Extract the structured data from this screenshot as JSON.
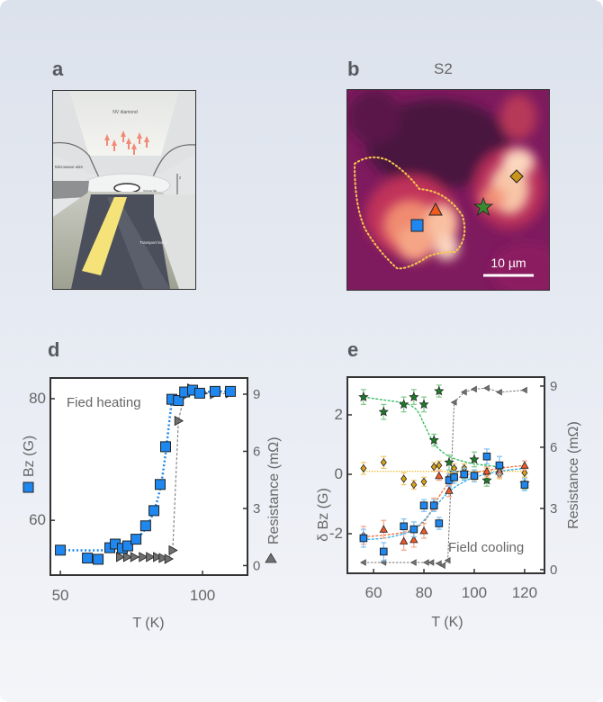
{
  "panels": {
    "a": {
      "letter": "a",
      "labels": {
        "nv_diamond": "NV diamond",
        "microwave_wire": "Microwave wire",
        "sample": "Sample",
        "transport_leads": "Transport leads",
        "z_axis": "z"
      }
    },
    "b": {
      "letter": "b",
      "title": "S2",
      "scale_bar": "10 µm",
      "markers": [
        "square",
        "triangle",
        "star",
        "diamond"
      ]
    },
    "d": {
      "letter": "d"
    },
    "e": {
      "letter": "e"
    }
  },
  "colors": {
    "blue": "#1e88f0",
    "orange": "#f2703a",
    "green": "#1f8a2e",
    "gold": "#d4a017",
    "gray": "#707070",
    "axis": "#333333",
    "label": "#666666"
  },
  "chart_data": [
    {
      "id": "d",
      "type": "scatter",
      "annotation": "Fied heating",
      "xlabel": "T (K)",
      "ylabel_left": "Bz (G)",
      "ylabel_right": "Resistance (mΩ)",
      "xlim": [
        46.5,
        115.8
      ],
      "ylim_left": [
        51.0,
        83.4
      ],
      "ylim_right": [
        -0.5,
        9.85
      ],
      "xticks": [
        50,
        100
      ],
      "yticks_left": [
        60,
        80
      ],
      "yticks_right": [
        0,
        3,
        6,
        9
      ],
      "series": [
        {
          "name": "Bz",
          "axis": "left",
          "marker": "square",
          "line": "dotted",
          "x": [
            50,
            59.5,
            63.3,
            67.4,
            69.3,
            71.8,
            73.7,
            76.6,
            80,
            82.9,
            85.1,
            87,
            89.2,
            91.5,
            93.7,
            96.5,
            99,
            104.4,
            109.8
          ],
          "y": [
            55.1,
            53.8,
            53.6,
            55.5,
            56.1,
            55.4,
            55.8,
            56.9,
            59.1,
            61.6,
            65.9,
            72.1,
            79.9,
            79.7,
            81.1,
            81.4,
            80.9,
            81.2,
            81.2
          ]
        },
        {
          "name": "Resistance",
          "axis": "right",
          "marker": "triangle-right",
          "line": "dashed",
          "x": [
            71,
            73.5,
            76,
            79,
            81.5,
            84,
            86,
            88,
            89.5,
            91.5,
            93.5,
            96,
            98,
            100,
            104,
            109.5
          ],
          "y": [
            0.45,
            0.45,
            0.45,
            0.45,
            0.45,
            0.45,
            0.4,
            0.35,
            0.8,
            7.6,
            8.9,
            9.3,
            9.2,
            9.05,
            9.0,
            9.05
          ]
        }
      ],
      "fit": {
        "x": [
          50,
          66,
          72,
          78,
          82,
          85,
          87,
          88.5,
          89.5,
          91,
          95,
          100,
          110
        ],
        "y": [
          55.1,
          55.1,
          55.6,
          57.5,
          60.5,
          65,
          71,
          77,
          80,
          80.3,
          80.9,
          81.1,
          81.2
        ]
      }
    },
    {
      "id": "e",
      "type": "scatter",
      "annotation": "Field cooling",
      "xlabel": "T (K)",
      "ylabel_left": "δ Bz (G)",
      "ylabel_right": "Resistance (mΩ)",
      "xlim": [
        49.6,
        127.9
      ],
      "ylim_left": [
        -3.33,
        3.27
      ],
      "ylim_right": [
        -0.18,
        9.44
      ],
      "xticks": [
        60,
        80,
        100,
        120
      ],
      "yticks_left": [
        -2,
        0,
        2
      ],
      "yticks_right": [
        0,
        3,
        6,
        9
      ],
      "series": [
        {
          "name": "star",
          "axis": "left",
          "marker": "star",
          "color": "green",
          "x": [
            56,
            64,
            72,
            76,
            80,
            84,
            86,
            90,
            92,
            96,
            100,
            105,
            110,
            120
          ],
          "y": [
            2.6,
            2.1,
            2.35,
            2.6,
            2.35,
            1.15,
            2.8,
            0.4,
            0.05,
            0.05,
            0.5,
            -0.2,
            0.2,
            -0.3
          ],
          "err": [
            0.25,
            0.25,
            0.25,
            0.25,
            0.25,
            0.2,
            0.2,
            0.25,
            0.2,
            0.2,
            0.25,
            0.2,
            0.2,
            0.2
          ]
        },
        {
          "name": "diamond",
          "axis": "left",
          "marker": "diamond",
          "color": "gold",
          "x": [
            56,
            64,
            72,
            76,
            80,
            84,
            86,
            90,
            92,
            96,
            100,
            105,
            110,
            120
          ],
          "y": [
            0.2,
            0.4,
            -0.15,
            -0.35,
            -0.25,
            0.25,
            0.3,
            -0.1,
            0.2,
            0.2,
            -0.05,
            0.05,
            0.0,
            0.05
          ],
          "err": [
            0.2,
            0.2,
            0.2,
            0.15,
            0.15,
            0.15,
            0.15,
            0.15,
            0.15,
            0.15,
            0.15,
            0.15,
            0.15,
            0.15
          ]
        },
        {
          "name": "triangle",
          "axis": "left",
          "marker": "triangle",
          "color": "orange",
          "x": [
            56,
            64,
            72,
            76,
            80,
            84,
            86,
            90,
            92,
            96,
            100,
            105,
            110,
            120
          ],
          "y": [
            -2.05,
            -1.85,
            -2.25,
            -2.2,
            -1.9,
            -1.0,
            -0.05,
            -0.55,
            -0.05,
            0.05,
            0.0,
            0.1,
            0.1,
            0.3
          ],
          "err": [
            0.3,
            0.3,
            0.3,
            0.25,
            0.25,
            0.2,
            0.15,
            0.2,
            0.15,
            0.15,
            0.15,
            0.15,
            0.2,
            0.15
          ]
        },
        {
          "name": "square",
          "axis": "left",
          "marker": "square",
          "color": "blue",
          "x": [
            56,
            64,
            72,
            76,
            80,
            84,
            86,
            90,
            92,
            96,
            100,
            105,
            110,
            120
          ],
          "y": [
            -2.15,
            -2.6,
            -1.75,
            -1.85,
            -1.05,
            -1.05,
            -1.65,
            -0.2,
            -0.1,
            0.0,
            -0.05,
            0.6,
            0.3,
            -0.35
          ],
          "err": [
            0.3,
            0.3,
            0.25,
            0.25,
            0.2,
            0.2,
            0.2,
            0.2,
            0.2,
            0.2,
            0.2,
            0.25,
            0.3,
            0.2
          ]
        },
        {
          "name": "Resistance",
          "axis": "right",
          "marker": "triangle-left",
          "color": "gray",
          "x": [
            56,
            64,
            76,
            81,
            83,
            86,
            87.5,
            89.5,
            92,
            96,
            100,
            105,
            110,
            120
          ],
          "y": [
            0.35,
            0.35,
            0.35,
            0.35,
            0.35,
            0.3,
            0.2,
            0.45,
            8.2,
            8.7,
            8.85,
            8.9,
            8.7,
            8.8
          ]
        }
      ],
      "fits": [
        {
          "color": "green",
          "style": "dashed",
          "x": [
            56,
            64,
            72,
            76,
            78,
            80,
            82,
            84,
            86,
            90,
            95,
            100,
            110
          ],
          "y": [
            2.6,
            2.5,
            2.4,
            2.25,
            2.05,
            1.7,
            1.35,
            1.05,
            0.85,
            0.6,
            0.45,
            0.35,
            0.25
          ]
        },
        {
          "color": "gold",
          "style": "dotted",
          "x": [
            56,
            120
          ],
          "y": [
            0.1,
            0.1
          ]
        },
        {
          "color": "orange",
          "style": "dashed",
          "x": [
            56,
            64,
            72,
            76,
            80,
            82,
            84,
            86,
            88,
            90,
            94,
            100,
            110,
            120
          ],
          "y": [
            -2.1,
            -2.05,
            -1.95,
            -1.85,
            -1.6,
            -1.35,
            -1.05,
            -0.75,
            -0.5,
            -0.3,
            -0.1,
            0.05,
            0.2,
            0.3
          ]
        },
        {
          "color": "blue",
          "style": "dashed",
          "x": [
            56,
            64,
            72,
            76,
            80,
            84,
            88,
            92,
            96,
            100,
            110,
            120
          ],
          "y": [
            -2.2,
            -2.15,
            -2.0,
            -1.85,
            -1.55,
            -1.15,
            -0.75,
            -0.45,
            -0.25,
            -0.1,
            0.1,
            0.2
          ]
        }
      ]
    }
  ]
}
